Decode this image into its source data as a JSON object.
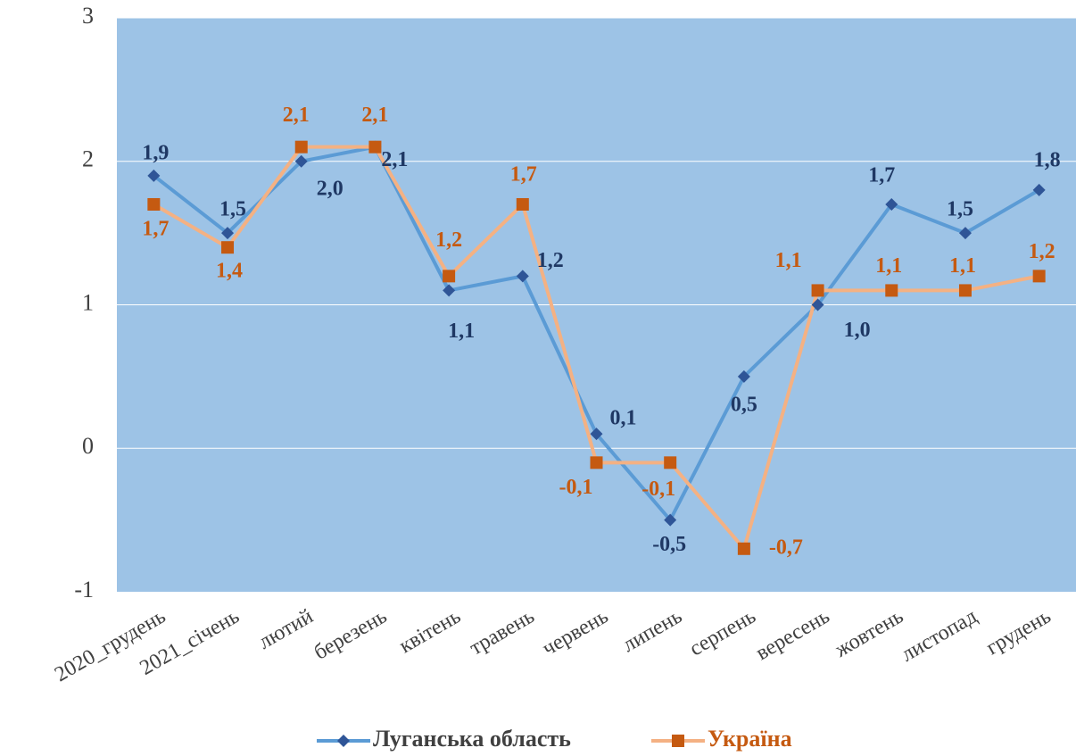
{
  "chart_data": {
    "type": "line",
    "categories": [
      "2020_грудень",
      "2021_січень",
      "лютий",
      "березень",
      "квітень",
      "травень",
      "червень",
      "липень",
      "серпень",
      "вересень",
      "жовтень",
      "листопад",
      "грудень"
    ],
    "series": [
      {
        "name": "Луганська область",
        "color": "#5b9bd5",
        "marker_color": "#2f5597",
        "label_color": "#1f3864",
        "values": [
          1.9,
          1.5,
          2.0,
          2.1,
          1.1,
          1.2,
          0.1,
          -0.5,
          0.5,
          1.0,
          1.7,
          1.5,
          1.8
        ],
        "value_labels": [
          "1,9",
          "1,5",
          "2,0",
          "2,1",
          "1,1",
          "1,2",
          "0,1",
          "-0,5",
          "0,5",
          "1,0",
          "1,7",
          "1,5",
          "1,8"
        ]
      },
      {
        "name": "Україна",
        "color": "#f4b183",
        "marker_color": "#c55a11",
        "label_color": "#c55a11",
        "values": [
          1.7,
          1.4,
          2.1,
          2.1,
          1.2,
          1.7,
          -0.1,
          -0.1,
          -0.7,
          1.1,
          1.1,
          1.1,
          1.2
        ],
        "value_labels": [
          "1,7",
          "1,4",
          "2,1",
          "2,1",
          "1,2",
          "1,7",
          "-0,1",
          "-0,1",
          "-0,7",
          "1,1",
          "1,1",
          "1,1",
          "1,2"
        ]
      }
    ],
    "ylim": [
      -1,
      3
    ],
    "yticks": [
      -1,
      0,
      1,
      2,
      3
    ],
    "grid": true,
    "legend": "bottom"
  }
}
